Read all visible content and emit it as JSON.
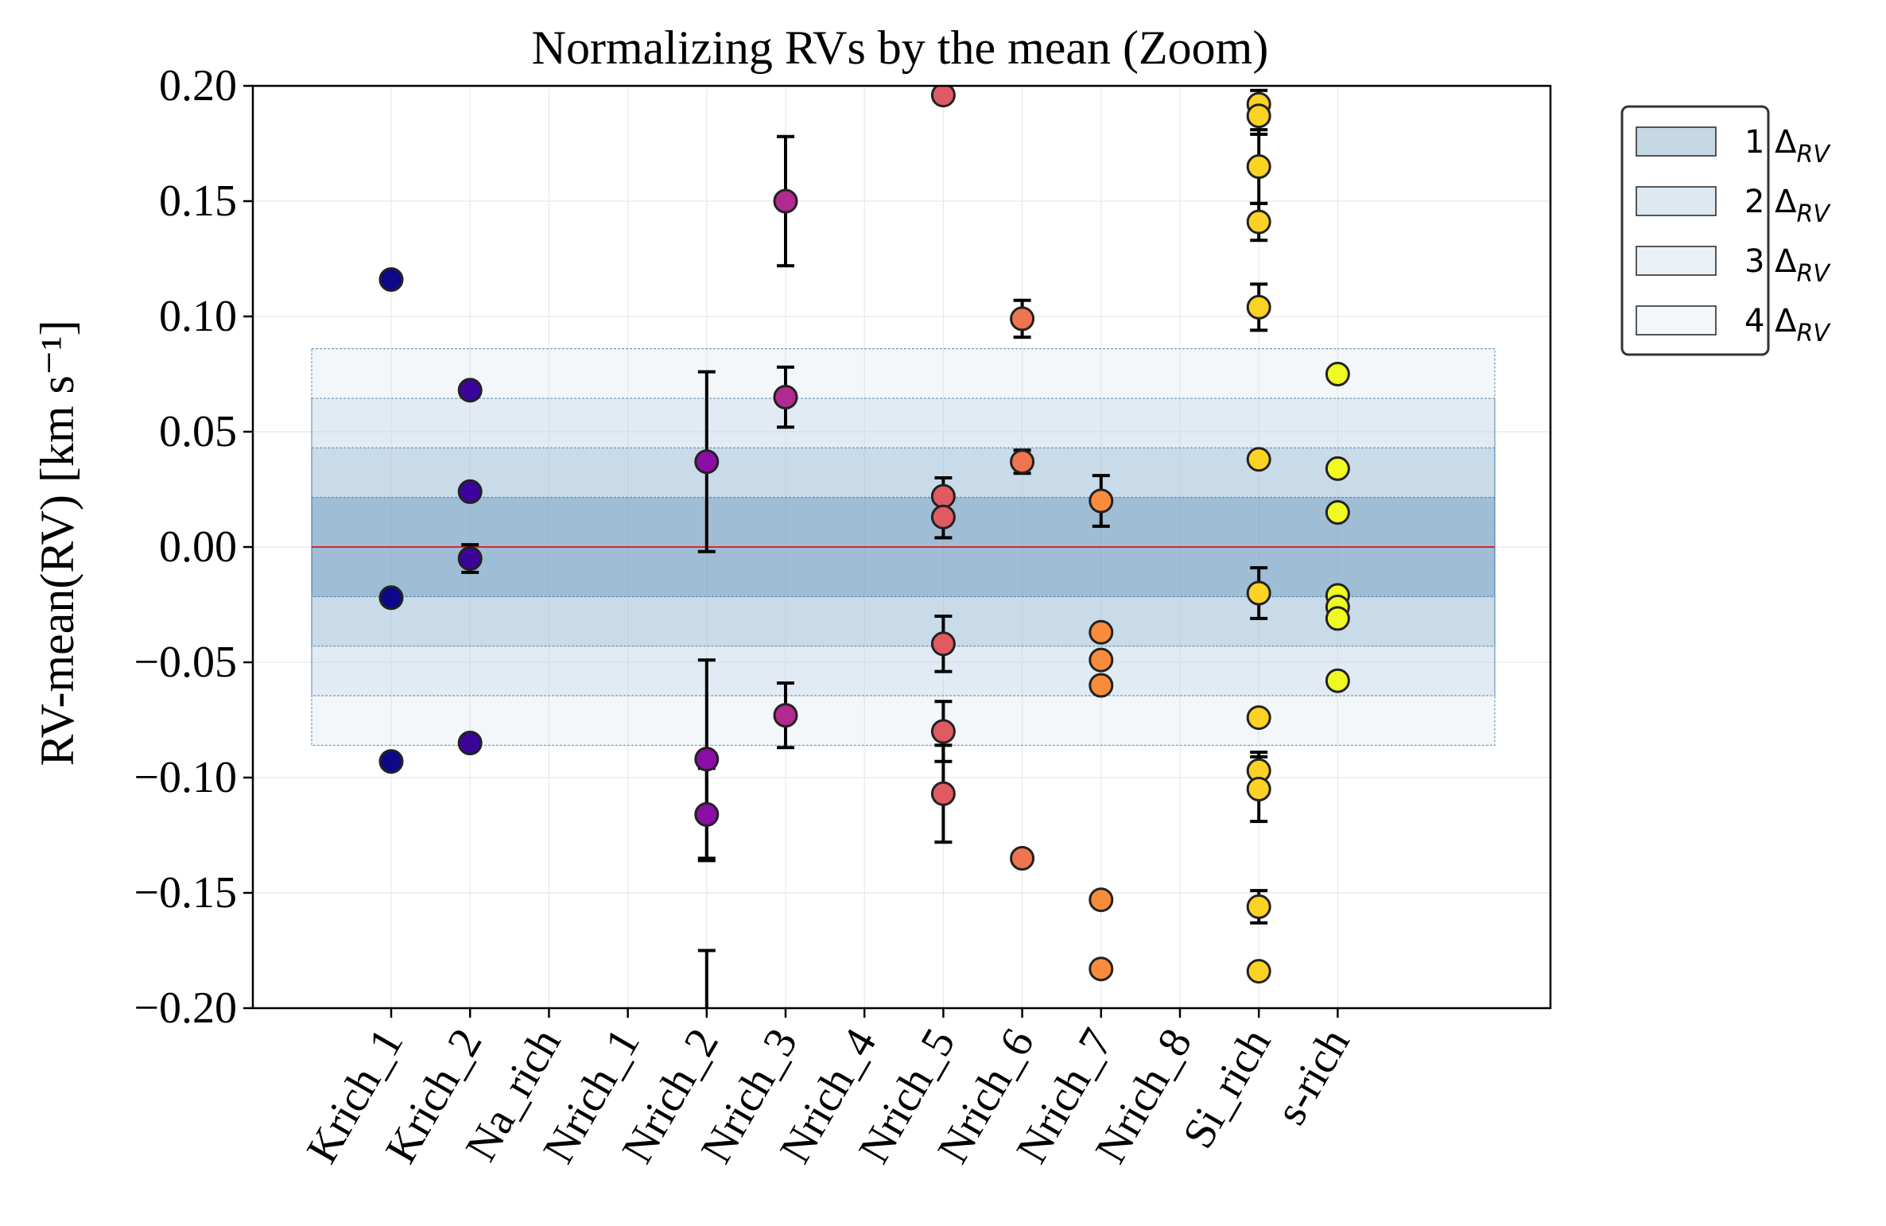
{
  "chart_data": {
    "type": "scatter",
    "title": "Normalizing RVs by the mean (Zoom)",
    "ylabel": "RV-mean(RV) [km s⁻¹]",
    "xlabel": "",
    "ylim": [
      -0.2,
      0.2
    ],
    "yticks": [
      -0.2,
      -0.15,
      -0.1,
      -0.05,
      0.0,
      0.05,
      0.1,
      0.15,
      0.2
    ],
    "ytick_labels": [
      "−0.20",
      "−0.15",
      "−0.10",
      "−0.05",
      "0.00",
      "0.05",
      "0.10",
      "0.15",
      "0.20"
    ],
    "categories": [
      "Krich_1",
      "Krich_2",
      "Na_rich",
      "Nrich_1",
      "Nrich_2",
      "Nrich_3",
      "Nrich_4",
      "Nrich_5",
      "Nrich_6",
      "Nrich_7",
      "Nrich_8",
      "Si_rich",
      "s-rich"
    ],
    "grid": true,
    "legend_placement": "outside upper right",
    "reference_line": {
      "y": 0.0,
      "color": "#d62728"
    },
    "bands": [
      {
        "label": "1 Δ",
        "label_sub": "RV",
        "half_width": 0.0215,
        "color": "#5b8fb3",
        "opacity": 0.38
      },
      {
        "label": "2 Δ",
        "label_sub": "RV",
        "half_width": 0.043,
        "color": "#7ea8c6",
        "opacity": 0.25
      },
      {
        "label": "3 Δ",
        "label_sub": "RV",
        "half_width": 0.0645,
        "color": "#a8c4d9",
        "opacity": 0.22
      },
      {
        "label": "4 Δ",
        "label_sub": "RV",
        "half_width": 0.086,
        "color": "#cfe0ec",
        "opacity": 0.25
      }
    ],
    "series": [
      {
        "category": "Krich_1",
        "color": "#0d0887",
        "points": [
          {
            "y": 0.116
          },
          {
            "y": -0.022
          },
          {
            "y": -0.093
          }
        ]
      },
      {
        "category": "Krich_2",
        "color": "#3d049b",
        "points": [
          {
            "y": 0.068
          },
          {
            "y": 0.024
          },
          {
            "y": -0.005,
            "err": 0.006
          },
          {
            "y": -0.085,
            "err": 0.003
          }
        ]
      },
      {
        "category": "Nrich_2",
        "color": "#8a0da5",
        "points": [
          {
            "y": 0.037,
            "err": 0.039
          },
          {
            "y": -0.092,
            "err": 0.043
          },
          {
            "y": -0.116,
            "err": 0.02
          },
          {
            "y": -0.215,
            "err": 0.04
          }
        ]
      },
      {
        "category": "Nrich_3",
        "color": "#b02a8f",
        "points": [
          {
            "y": 0.15,
            "err": 0.028
          },
          {
            "y": 0.065,
            "err": 0.013
          },
          {
            "y": -0.073,
            "err": 0.014
          }
        ]
      },
      {
        "category": "Nrich_5",
        "color": "#e05a63",
        "points": [
          {
            "y": 0.196
          },
          {
            "y": 0.022,
            "err": 0.008
          },
          {
            "y": 0.013,
            "err": 0.009
          },
          {
            "y": -0.042,
            "err": 0.012
          },
          {
            "y": -0.08,
            "err": 0.013
          },
          {
            "y": -0.107,
            "err": 0.021
          }
        ]
      },
      {
        "category": "Nrich_6",
        "color": "#ef7550",
        "points": [
          {
            "y": 0.099,
            "err": 0.008
          },
          {
            "y": 0.037,
            "err": 0.005
          },
          {
            "y": -0.135
          }
        ]
      },
      {
        "category": "Nrich_7",
        "color": "#f88c3c",
        "points": [
          {
            "y": 0.02,
            "err": 0.011
          },
          {
            "y": -0.037
          },
          {
            "y": -0.049
          },
          {
            "y": -0.06
          },
          {
            "y": -0.153
          },
          {
            "y": -0.183
          }
        ]
      },
      {
        "category": "Si_rich",
        "color": "#fcd225",
        "points": [
          {
            "y": 0.192,
            "err": 0.006
          },
          {
            "y": 0.187,
            "err": 0.008
          },
          {
            "y": 0.165,
            "err": 0.016
          },
          {
            "y": 0.141,
            "err": 0.008
          },
          {
            "y": 0.104,
            "err": 0.01
          },
          {
            "y": 0.038
          },
          {
            "y": -0.02,
            "err": 0.011
          },
          {
            "y": -0.074
          },
          {
            "y": -0.097,
            "err": 0.008
          },
          {
            "y": -0.105,
            "err": 0.014
          },
          {
            "y": -0.156,
            "err": 0.007
          },
          {
            "y": -0.184
          }
        ]
      },
      {
        "category": "s-rich",
        "color": "#f0f921",
        "points": [
          {
            "y": 0.075
          },
          {
            "y": 0.034
          },
          {
            "y": 0.015
          },
          {
            "y": -0.021
          },
          {
            "y": -0.026
          },
          {
            "y": -0.031
          },
          {
            "y": -0.058
          }
        ]
      }
    ]
  }
}
